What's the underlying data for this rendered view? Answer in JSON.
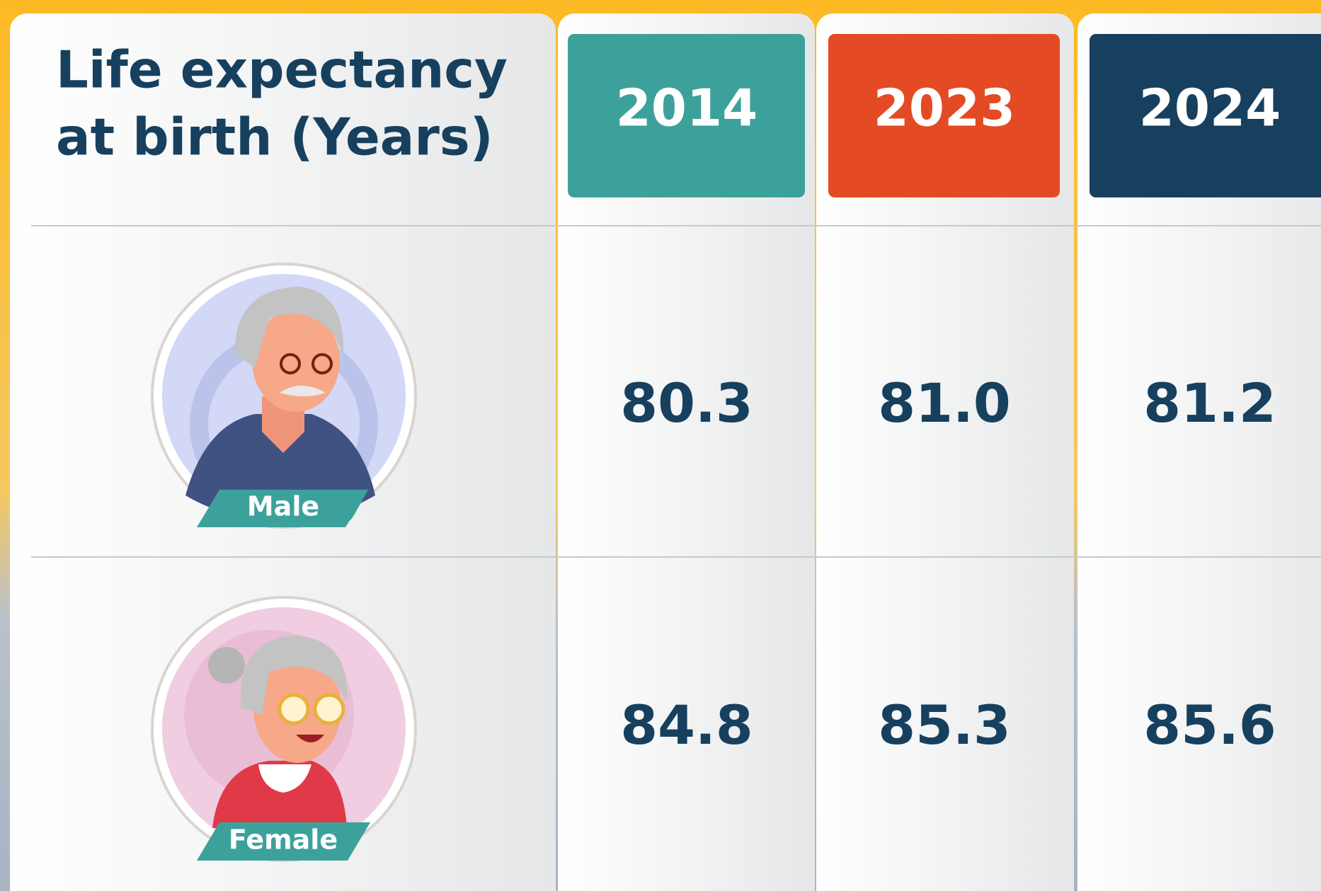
{
  "header": {
    "title_lines": [
      "Life expectancy",
      "at birth (Years)"
    ],
    "columns": [
      "2014",
      "2023",
      "2024"
    ]
  },
  "table": {
    "rows": [
      {
        "label": "Male",
        "values": [
          "80.3",
          "81.0",
          "81.2"
        ]
      },
      {
        "label": "Female",
        "values": [
          "84.8",
          "85.3",
          "85.6"
        ]
      }
    ]
  }
}
